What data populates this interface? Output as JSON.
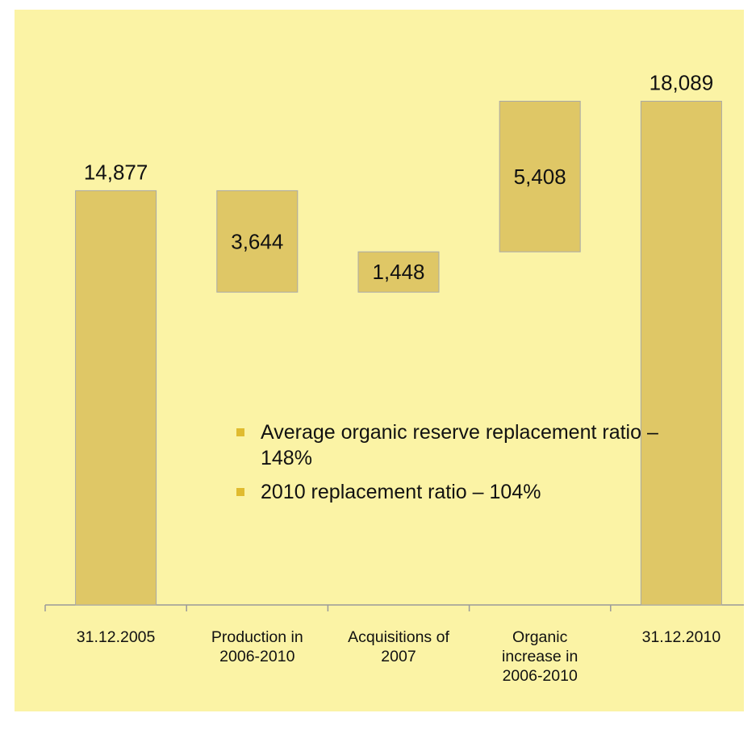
{
  "chart_data": {
    "type": "waterfall",
    "categories": [
      "31.12.2005",
      "Production in\n2006-2010",
      "Acquisitions of\n2007",
      "Organic\nincrease in\n2006-2010",
      "31.12.2010"
    ],
    "values": [
      14877,
      -3644,
      1448,
      5408,
      18089
    ],
    "value_labels": [
      "14,877",
      "3,644",
      "1,448",
      "5,408",
      "18,089"
    ],
    "bar_kinds": [
      "total",
      "decrease",
      "increase",
      "increase",
      "total"
    ],
    "ylim": [
      0,
      21000
    ],
    "grid": false,
    "legend": "none",
    "colors": {
      "background": "#fbf3a5",
      "bar_fill": "#dfc766",
      "bar_stroke": "#a9a9a9",
      "axis": "#9a9a9a",
      "text": "#111111",
      "bullet": "#e0bb2f"
    }
  },
  "notes": [
    "Average organic reserve replacement ratio – 148%",
    "2010 replacement ratio – 104%"
  ]
}
